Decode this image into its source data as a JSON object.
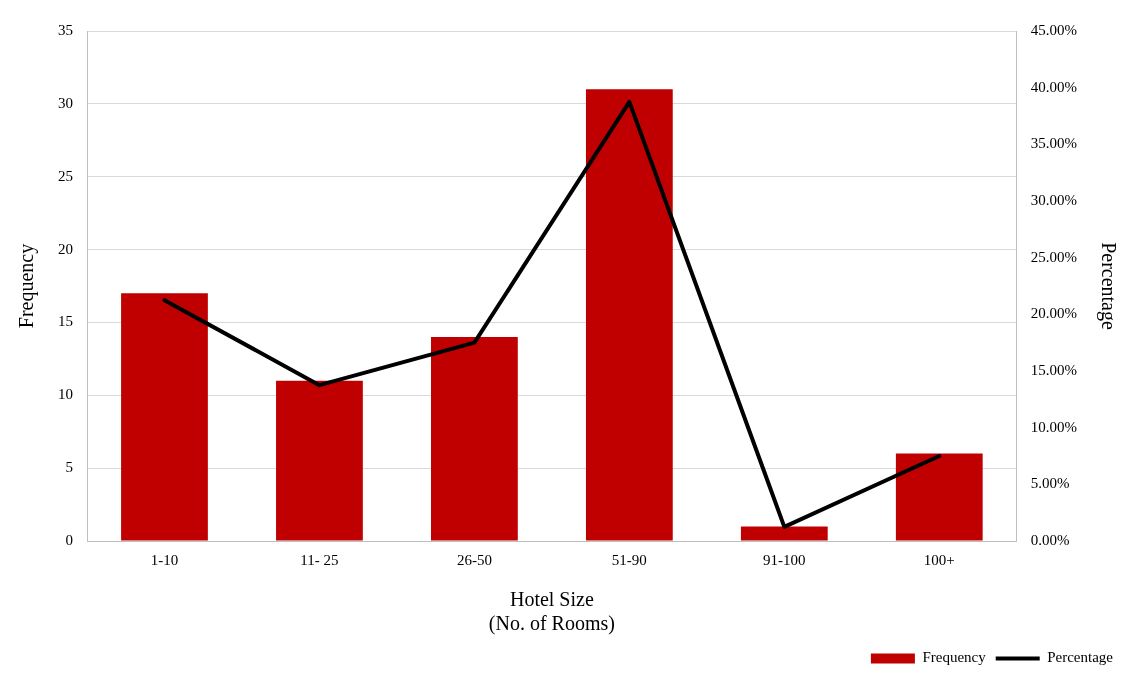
{
  "chart_data": {
    "type": "bar",
    "xlabel": "Hotel Size\n(No. of Rooms)",
    "ylabel": "Frequency",
    "y2label": "Percentage",
    "categories": [
      "1-10",
      "11- 25",
      "26-50",
      "51-90",
      "91-100",
      "100+"
    ],
    "series": [
      {
        "name": "Frequency",
        "color": "#c00000",
        "values": [
          17,
          11,
          14,
          31,
          1,
          6
        ]
      },
      {
        "name": "Percentage",
        "type": "line",
        "axis": "y2",
        "color": "#000000",
        "values": [
          21.25,
          13.75,
          17.5,
          38.75,
          1.25,
          7.5
        ]
      }
    ],
    "ylim": [
      0,
      35
    ],
    "yticks": [
      0,
      5,
      10,
      15,
      20,
      25,
      30,
      35
    ],
    "y2lim": [
      0,
      45
    ],
    "y2ticks": [
      {
        "value": 0,
        "label": "0.00%"
      },
      {
        "value": 5,
        "label": "5.00%"
      },
      {
        "value": 10,
        "label": "10.00%"
      },
      {
        "value": 15,
        "label": "15.00%"
      },
      {
        "value": 20,
        "label": "20.00%"
      },
      {
        "value": 25,
        "label": "25.00%"
      },
      {
        "value": 30,
        "label": "30.00%"
      },
      {
        "value": 35,
        "label": "35.00%"
      },
      {
        "value": 40,
        "label": "40.00%"
      },
      {
        "value": 45,
        "label": "45.00%"
      }
    ],
    "grid": "y",
    "legend": "bottom right",
    "marker": "none",
    "line_style": "solid"
  }
}
